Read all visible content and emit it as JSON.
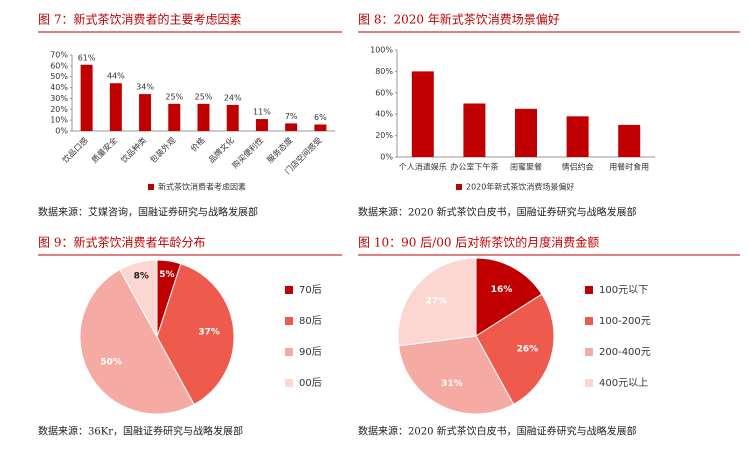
{
  "chart_data": [
    {
      "type": "bar",
      "title": "图 7：新式茶饮消费者的主要考虑因素",
      "source": "数据来源：艾媒咨询，国融证券研究与战略发展部",
      "categories": [
        "饮品口感",
        "质量安全",
        "饮品种类",
        "包装外观",
        "价格",
        "品牌文化",
        "购买便利性",
        "服务态度",
        "门店空间感受"
      ],
      "series": [
        {
          "name": "新式茶饮消费者考虑因素",
          "color": "#c00000",
          "values": [
            61,
            44,
            34,
            25,
            25,
            24,
            11,
            7,
            6
          ],
          "value_labels": [
            "61%",
            "44%",
            "34%",
            "25%",
            "25%",
            "24%",
            "11%",
            "7%",
            "6%"
          ]
        }
      ],
      "ylim": [
        0,
        70
      ],
      "yticks": [
        {
          "value": 0,
          "label": "0%"
        },
        {
          "value": 10,
          "label": "10%"
        },
        {
          "value": 20,
          "label": "20%"
        },
        {
          "value": 30,
          "label": "30%"
        },
        {
          "value": 40,
          "label": "40%"
        },
        {
          "value": 50,
          "label": "50%"
        },
        {
          "value": 60,
          "label": "60%"
        },
        {
          "value": 70,
          "label": "70%"
        }
      ],
      "x_label_rotation": -45
    },
    {
      "type": "bar",
      "title": "图 8：2020 年新式茶饮消费场景偏好",
      "source": "数据来源：2020 新式茶饮白皮书，国融证券研究与战略发展部",
      "categories": [
        "个人消遣娱乐",
        "办公室下午茶",
        "闺蜜聚餐",
        "情侣约会",
        "用餐时食用"
      ],
      "series": [
        {
          "name": "2020年新式茶饮消费场景偏好",
          "color": "#c00000",
          "values": [
            80,
            50,
            45,
            38,
            30
          ]
        }
      ],
      "ylim": [
        0,
        100
      ],
      "yticks": [
        {
          "value": 0,
          "label": "0%"
        },
        {
          "value": 20,
          "label": "20%"
        },
        {
          "value": 40,
          "label": "40%"
        },
        {
          "value": 60,
          "label": "60%"
        },
        {
          "value": 80,
          "label": "80%"
        },
        {
          "value": 100,
          "label": "100%"
        }
      ]
    },
    {
      "type": "pie",
      "title": "图 9：新式茶饮消费者年龄分布",
      "source": "数据来源：36Kr，国融证券研究与战略发展部",
      "categories": [
        "70后",
        "80后",
        "90后",
        "00后"
      ],
      "values": [
        5,
        37,
        50,
        8
      ],
      "value_labels": [
        "5%",
        "37%",
        "50%",
        "8%"
      ],
      "colors": [
        "#c00000",
        "#ee5a4c",
        "#f5aba4",
        "#fcd6d1"
      ]
    },
    {
      "type": "pie",
      "title": "图 10：90 后/00 后对新茶饮的月度消费金额",
      "source": "数据来源：2020 新式茶饮白皮书，国融证券研究与战略发展部",
      "categories": [
        "100元以下",
        "100-200元",
        "200-400元",
        "400元以上"
      ],
      "values": [
        16,
        26,
        31,
        27
      ],
      "value_labels": [
        "16%",
        "26%",
        "31%",
        "27%"
      ],
      "colors": [
        "#c00000",
        "#ee5a4c",
        "#f5aba4",
        "#fcd6d1"
      ]
    }
  ]
}
